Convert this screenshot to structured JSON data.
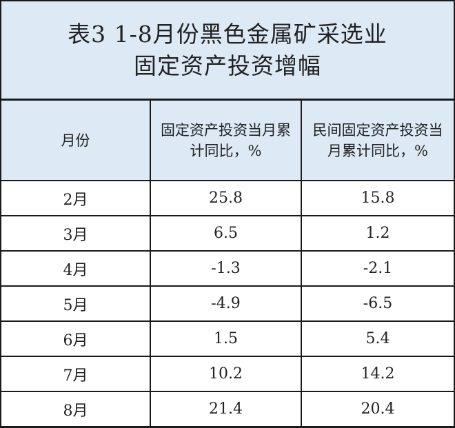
{
  "title": {
    "line1": "表3 1-8月份黑色金属矿采选业",
    "line2": "固定资产投资增幅"
  },
  "columns": [
    "月份",
    "固定资产投资当月累计同比，%",
    "民间固定资产投资当月累计同比，%"
  ],
  "rows": [
    {
      "month": "2月",
      "fixed": "25.8",
      "private": "15.8"
    },
    {
      "month": "3月",
      "fixed": "6.5",
      "private": "1.2"
    },
    {
      "month": "4月",
      "fixed": "-1.3",
      "private": "-2.1"
    },
    {
      "month": "5月",
      "fixed": "-4.9",
      "private": "-6.5"
    },
    {
      "month": "6月",
      "fixed": "1.5",
      "private": "5.4"
    },
    {
      "month": "7月",
      "fixed": "10.2",
      "private": "14.2"
    },
    {
      "month": "8月",
      "fixed": "21.4",
      "private": "20.4"
    }
  ],
  "colors": {
    "header_bg": "#dde9f5",
    "border": "#1a1a1a"
  }
}
